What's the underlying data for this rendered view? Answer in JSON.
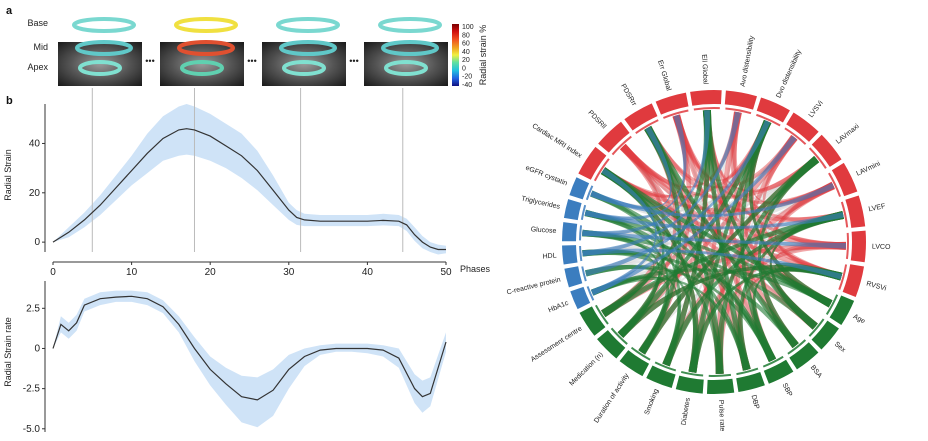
{
  "panel_labels": {
    "a": "a",
    "b": "b"
  },
  "panel_a": {
    "row_labels": [
      "Base",
      "Mid",
      "Apex"
    ],
    "ellipsis": "•••",
    "colorbar": {
      "title": "Radial strain %",
      "ticks": [
        "100",
        "80",
        "60",
        "40",
        "20",
        "0",
        "-20",
        "-40"
      ],
      "colors": [
        "#7a0000",
        "#d01010",
        "#f05020",
        "#f0a020",
        "#f0f040",
        "#60e0a0",
        "#20c0e0",
        "#2060e0",
        "#101080"
      ]
    }
  },
  "chart_data": [
    {
      "type": "line",
      "title": "",
      "xlabel": "Phases",
      "ylabel": "Radial Strain",
      "xlim": [
        0,
        50
      ],
      "ylim": [
        -4,
        56
      ],
      "xticks": [
        0,
        10,
        20,
        30,
        40,
        50
      ],
      "yticks": [
        0,
        20,
        40
      ],
      "band_color": "#cfe3f7",
      "line_color": "#333333",
      "marker_x": [
        5,
        18,
        31.5,
        44.5
      ],
      "x": [
        0,
        2,
        4,
        6,
        8,
        10,
        12,
        14,
        16,
        17,
        18,
        20,
        22,
        24,
        26,
        28,
        30,
        31,
        32,
        34,
        36,
        38,
        40,
        42,
        44,
        45,
        46,
        47,
        48,
        49,
        50
      ],
      "y": [
        0,
        4,
        9,
        15,
        22,
        29,
        36,
        42,
        45.5,
        46,
        45.5,
        43,
        39,
        35,
        29,
        21,
        13,
        10,
        9,
        8.5,
        8.5,
        8.5,
        8.5,
        8.8,
        8.5,
        7,
        3,
        0,
        -2,
        -3,
        -3
      ],
      "lower": [
        0,
        2,
        6,
        11,
        17,
        23,
        28,
        33,
        35,
        35.5,
        35,
        33,
        30,
        26,
        21,
        15,
        9,
        7,
        6.5,
        6.5,
        6.5,
        6.5,
        6.5,
        6.8,
        6.5,
        4.5,
        0.5,
        -2.5,
        -4,
        -5,
        -4.5
      ],
      "upper": [
        0,
        6,
        12,
        19,
        27,
        35,
        44,
        51,
        55,
        56,
        55,
        52,
        48,
        44,
        37,
        27,
        16,
        13,
        11.5,
        11,
        11,
        11,
        11,
        11.5,
        11,
        9.5,
        6,
        2.5,
        0,
        -1,
        -1.5
      ]
    },
    {
      "type": "line",
      "title": "",
      "xlabel": "",
      "ylabel": "Radial Strain rate",
      "xlim": [
        0,
        50
      ],
      "ylim": [
        -5.2,
        4.2
      ],
      "yticks": [
        2.5,
        0,
        -2.5,
        -5.0
      ],
      "ytick_labels": [
        "2.5",
        "0",
        "-2.5",
        "-5.0"
      ],
      "band_color": "#cfe3f7",
      "line_color": "#333333",
      "x": [
        0,
        1,
        2,
        3,
        4,
        6,
        8,
        10,
        12,
        14,
        16,
        18,
        20,
        22,
        24,
        26,
        28,
        30,
        32,
        34,
        36,
        38,
        40,
        42,
        44,
        46,
        47,
        48,
        50
      ],
      "y": [
        0,
        1.5,
        1.1,
        1.6,
        2.7,
        3.1,
        3.2,
        3.25,
        3.1,
        2.6,
        1.5,
        0,
        -1.3,
        -2.2,
        -3.0,
        -3.2,
        -2.6,
        -1.3,
        -0.5,
        -0.1,
        0,
        0,
        0,
        -0.1,
        -0.6,
        -2.5,
        -3.0,
        -2.8,
        0.4
      ],
      "lower": [
        0,
        1.0,
        0.6,
        1.1,
        2.3,
        2.7,
        2.9,
        2.9,
        2.7,
        2.2,
        1.0,
        -0.8,
        -2.3,
        -3.5,
        -4.6,
        -4.9,
        -4.2,
        -2.5,
        -1.1,
        -0.4,
        -0.2,
        -0.2,
        -0.3,
        -0.5,
        -1.2,
        -3.4,
        -4.0,
        -3.6,
        -0.2
      ],
      "upper": [
        0,
        2.0,
        1.6,
        2.1,
        3.1,
        3.5,
        3.6,
        3.6,
        3.5,
        3.0,
        2.0,
        0.7,
        -0.5,
        -1.2,
        -1.7,
        -1.8,
        -1.3,
        -0.4,
        0,
        0.2,
        0.3,
        0.3,
        0.3,
        0.2,
        0,
        -1.6,
        -2.0,
        -1.8,
        1.0
      ]
    },
    {
      "type": "chord",
      "title": "",
      "cardiac": [
        "RVSVi",
        "LVCO",
        "LVEF",
        "LAVmini",
        "LAVmaxi",
        "LVSVi",
        "Dvo distensibility",
        "Avo distensibility",
        "Ell Global",
        "Err Global",
        "PDSRrr",
        "PDSRll",
        "Cardiac MRI index"
      ],
      "metabolic": [
        "eGFR cystatin",
        "Triglycerides",
        "Glucose",
        "HDL",
        "C-reactive protein",
        "HbA1c"
      ],
      "clinical": [
        "Assessment centre",
        "Medication (n)",
        "Duration of activity",
        "Smoking",
        "Diabetes",
        "Pulse rate",
        "DBP",
        "SBP",
        "BSA",
        "Sex",
        "Age"
      ],
      "colors": {
        "cardiac": "#e03a3e",
        "metabolic": "#3b7dbf",
        "clinical": "#1f7a32",
        "neutral": "#cfcfcf"
      }
    }
  ]
}
